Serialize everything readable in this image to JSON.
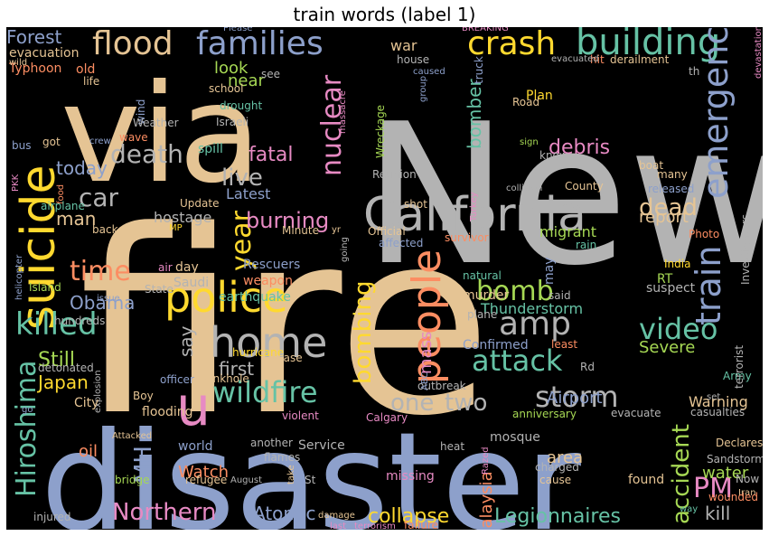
{
  "chart_data": {
    "type": "wordcloud",
    "title": "train words (label 1)",
    "background": "#000000",
    "palette": {
      "tan": "#e5c494",
      "gray": "#b3b3b3",
      "blue": "#8da0cb",
      "teal": "#66c2a5",
      "pink": "#e78ac3",
      "lime": "#a6d854",
      "yellow": "#ffd92f",
      "orange": "#fc8d62"
    },
    "words": [
      {
        "text": "New",
        "color": "gray",
        "rot": 0
      },
      {
        "text": "fire",
        "color": "tan",
        "rot": 0
      },
      {
        "text": "disaster",
        "color": "blue",
        "rot": 0
      },
      {
        "text": "via",
        "color": "tan",
        "rot": 0
      },
      {
        "text": "California",
        "color": "gray",
        "rot": 0
      },
      {
        "text": "suicide",
        "color": "yellow",
        "rot": -90
      },
      {
        "text": "police",
        "color": "yellow",
        "rot": 0
      },
      {
        "text": "people",
        "color": "orange",
        "rot": -90
      },
      {
        "text": "home",
        "color": "gray",
        "rot": 0
      },
      {
        "text": "building",
        "color": "teal",
        "rot": 0
      },
      {
        "text": "flood",
        "color": "tan",
        "rot": 0
      },
      {
        "text": "families",
        "color": "blue",
        "rot": 0
      },
      {
        "text": "crash",
        "color": "yellow",
        "rot": 0
      },
      {
        "text": "u",
        "color": "pink",
        "rot": 0
      },
      {
        "text": "killed",
        "color": "teal",
        "rot": 0
      },
      {
        "text": "amp",
        "color": "gray",
        "rot": 0
      },
      {
        "text": "bomb",
        "color": "lime",
        "rot": 0
      },
      {
        "text": "train",
        "color": "blue",
        "rot": -90
      },
      {
        "text": "emergency",
        "color": "blue",
        "rot": -90
      },
      {
        "text": "nuclear",
        "color": "pink",
        "rot": -90
      },
      {
        "text": "death",
        "color": "gray",
        "rot": 0
      },
      {
        "text": "car",
        "color": "gray",
        "rot": 0
      },
      {
        "text": "year",
        "color": "yellow",
        "rot": -90
      },
      {
        "text": "time",
        "color": "orange",
        "rot": 0
      },
      {
        "text": "Hiroshima",
        "color": "teal",
        "rot": -90
      },
      {
        "text": "wildfire",
        "color": "teal",
        "rot": 0
      },
      {
        "text": "attack",
        "color": "teal",
        "rot": 0
      },
      {
        "text": "video",
        "color": "teal",
        "rot": 0
      },
      {
        "text": "storm",
        "color": "gray",
        "rot": 0
      },
      {
        "text": "Northern",
        "color": "pink",
        "rot": 0
      },
      {
        "text": "bombing",
        "color": "yellow",
        "rot": -90
      },
      {
        "text": "accident",
        "color": "lime",
        "rot": -90
      },
      {
        "text": "dead",
        "color": "tan",
        "rot": 0
      },
      {
        "text": "live",
        "color": "gray",
        "rot": 0
      },
      {
        "text": "fatal",
        "color": "pink",
        "rot": 0
      },
      {
        "text": "burning",
        "color": "pink",
        "rot": 0
      },
      {
        "text": "debris",
        "color": "pink",
        "rot": 0
      },
      {
        "text": "two",
        "color": "gray",
        "rot": 0
      },
      {
        "text": "one",
        "color": "gray",
        "rot": 0
      },
      {
        "text": "PM",
        "color": "pink",
        "rot": 0
      },
      {
        "text": "MH",
        "color": "blue",
        "rot": -90
      },
      {
        "text": "collapse",
        "color": "yellow",
        "rot": 0
      },
      {
        "text": "Legionnaires",
        "color": "teal",
        "rot": 0
      },
      {
        "text": "Obama",
        "color": "blue",
        "rot": 0
      },
      {
        "text": "Still",
        "color": "lime",
        "rot": 0
      },
      {
        "text": "Japan",
        "color": "yellow",
        "rot": 0
      },
      {
        "text": "first",
        "color": "gray",
        "rot": 0
      },
      {
        "text": "say",
        "color": "gray",
        "rot": -90
      },
      {
        "text": "report",
        "color": "tan",
        "rot": 0
      },
      {
        "text": "Forest",
        "color": "blue",
        "rot": 0
      },
      {
        "text": "war",
        "color": "tan",
        "rot": 0
      },
      {
        "text": "look",
        "color": "lime",
        "rot": 0
      },
      {
        "text": "near",
        "color": "lime",
        "rot": 0
      },
      {
        "text": "today",
        "color": "blue",
        "rot": 0
      },
      {
        "text": "man",
        "color": "tan",
        "rot": 0
      },
      {
        "text": "bomber",
        "color": "teal",
        "rot": -90
      },
      {
        "text": "mass",
        "color": "pink",
        "rot": -90
      },
      {
        "text": "water",
        "color": "lime",
        "rot": 0
      },
      {
        "text": "area",
        "color": "tan",
        "rot": 0
      },
      {
        "text": "Watch",
        "color": "orange",
        "rot": 0
      },
      {
        "text": "Atomic",
        "color": "blue",
        "rot": 0
      },
      {
        "text": "kill",
        "color": "gray",
        "rot": 0
      },
      {
        "text": "Warning",
        "color": "tan",
        "rot": 0
      },
      {
        "text": "Airport",
        "color": "blue",
        "rot": 0
      },
      {
        "text": "Malaysia",
        "color": "orange",
        "rot": -90
      },
      {
        "text": "Severe",
        "color": "lime",
        "rot": 0
      },
      {
        "text": "Thunderstorm",
        "color": "teal",
        "rot": 0
      },
      {
        "text": "migrant",
        "color": "lime",
        "rot": 0
      },
      {
        "text": "Rescuers",
        "color": "blue",
        "rot": 0
      },
      {
        "text": "earthquake",
        "color": "teal",
        "rot": 0
      },
      {
        "text": "hostage",
        "color": "gray",
        "rot": 0
      },
      {
        "text": "Latest",
        "color": "blue",
        "rot": 0
      },
      {
        "text": "evacuation",
        "color": "tan",
        "rot": 0
      },
      {
        "text": "Typhoon",
        "color": "orange",
        "rot": 0
      },
      {
        "text": "wild",
        "color": "tan",
        "rot": 0
      },
      {
        "text": "old",
        "color": "orange",
        "rot": 0
      },
      {
        "text": "life",
        "color": "tan",
        "rot": 0
      },
      {
        "text": "wind",
        "color": "blue",
        "rot": -90
      },
      {
        "text": "Weather",
        "color": "gray",
        "rot": 0
      },
      {
        "text": "State",
        "color": "gray",
        "rot": 0
      },
      {
        "text": "drought",
        "color": "teal",
        "rot": 0
      },
      {
        "text": "school",
        "color": "tan",
        "rot": 0
      },
      {
        "text": "Israeli",
        "color": "gray",
        "rot": 0
      },
      {
        "text": "spill",
        "color": "teal",
        "rot": 0
      },
      {
        "text": "wave",
        "color": "orange",
        "rot": 0
      },
      {
        "text": "crew",
        "color": "blue",
        "rot": 0
      },
      {
        "text": "got",
        "color": "tan",
        "rot": 0
      },
      {
        "text": "bus",
        "color": "blue",
        "rot": 0
      },
      {
        "text": "PKK",
        "color": "pink",
        "rot": -90
      },
      {
        "text": "food",
        "color": "orange",
        "rot": -90
      },
      {
        "text": "airplane",
        "color": "teal",
        "rot": 0
      },
      {
        "text": "back",
        "color": "tan",
        "rot": 0
      },
      {
        "text": "helicopter",
        "color": "blue",
        "rot": -90
      },
      {
        "text": "Island",
        "color": "lime",
        "rot": 0
      },
      {
        "text": "issue",
        "color": "blue",
        "rot": 0
      },
      {
        "text": "air",
        "color": "pink",
        "rot": 0
      },
      {
        "text": "day",
        "color": "tan",
        "rot": 0
      },
      {
        "text": "Saudi",
        "color": "gray",
        "rot": 0
      },
      {
        "text": "weapon",
        "color": "orange",
        "rot": 0
      },
      {
        "text": "Update",
        "color": "tan",
        "rot": 0
      },
      {
        "text": "MP",
        "color": "yellow",
        "rot": 0
      },
      {
        "text": "Minute",
        "color": "tan",
        "rot": 0
      },
      {
        "text": "hundreds",
        "color": "gray",
        "rot": 0
      },
      {
        "text": "detonated",
        "color": "gray",
        "rot": 0
      },
      {
        "text": "explosion",
        "color": "gray",
        "rot": -90
      },
      {
        "text": "City",
        "color": "tan",
        "rot": 0
      },
      {
        "text": "go",
        "color": "blue",
        "rot": 0
      },
      {
        "text": "oil",
        "color": "orange",
        "rot": 0
      },
      {
        "text": "Boy",
        "color": "tan",
        "rot": 0
      },
      {
        "text": "hurricane",
        "color": "yellow",
        "rot": 0
      },
      {
        "text": "officer",
        "color": "blue",
        "rot": 0
      },
      {
        "text": "sinkhole",
        "color": "tan",
        "rot": 0
      },
      {
        "text": "case",
        "color": "tan",
        "rot": 0
      },
      {
        "text": "flooding",
        "color": "tan",
        "rot": 0
      },
      {
        "text": "Attacked",
        "color": "tan",
        "rot": 0
      },
      {
        "text": "world",
        "color": "blue",
        "rot": 0
      },
      {
        "text": "bridge",
        "color": "lime",
        "rot": 0
      },
      {
        "text": "refugee",
        "color": "tan",
        "rot": 0
      },
      {
        "text": "August",
        "color": "gray",
        "rot": 0
      },
      {
        "text": "another",
        "color": "gray",
        "rot": 0
      },
      {
        "text": "flames",
        "color": "gray",
        "rot": 0
      },
      {
        "text": "Service",
        "color": "gray",
        "rot": 0
      },
      {
        "text": "take",
        "color": "tan",
        "rot": -90
      },
      {
        "text": "St",
        "color": "gray",
        "rot": 0
      },
      {
        "text": "injured",
        "color": "gray",
        "rot": 0
      },
      {
        "text": "damage",
        "color": "tan",
        "rot": 0
      },
      {
        "text": "last",
        "color": "pink",
        "rot": 0
      },
      {
        "text": "terrorism",
        "color": "pink",
        "rot": 0
      },
      {
        "text": "failure",
        "color": "orange",
        "rot": 0
      },
      {
        "text": "missing",
        "color": "pink",
        "rot": 0
      },
      {
        "text": "heat",
        "color": "gray",
        "rot": 0
      },
      {
        "text": "charged",
        "color": "gray",
        "rot": 0
      },
      {
        "text": "cause",
        "color": "tan",
        "rot": 0
      },
      {
        "text": "Razed",
        "color": "pink",
        "rot": -90
      },
      {
        "text": "mosque",
        "color": "gray",
        "rot": 0
      },
      {
        "text": "found",
        "color": "tan",
        "rot": 0
      },
      {
        "text": "anniversary",
        "color": "lime",
        "rot": 0
      },
      {
        "text": "evacuate",
        "color": "gray",
        "rot": 0
      },
      {
        "text": "violent",
        "color": "pink",
        "rot": 0
      },
      {
        "text": "Calgary",
        "color": "pink",
        "rot": 0
      },
      {
        "text": "outbreak",
        "color": "gray",
        "rot": 0
      },
      {
        "text": "Confirmed",
        "color": "blue",
        "rot": 0
      },
      {
        "text": "ABC",
        "color": "blue",
        "rot": -90
      },
      {
        "text": "murder",
        "color": "tan",
        "rot": 0
      },
      {
        "text": "natural",
        "color": "teal",
        "rot": 0
      },
      {
        "text": "may",
        "color": "blue",
        "rot": -90
      },
      {
        "text": "RT",
        "color": "lime",
        "rot": 0
      },
      {
        "text": "India",
        "color": "yellow",
        "rot": 0
      },
      {
        "text": "suspect",
        "color": "gray",
        "rot": 0
      },
      {
        "text": "said",
        "color": "gray",
        "rot": 0
      },
      {
        "text": "plane",
        "color": "gray",
        "rot": 0
      },
      {
        "text": "least",
        "color": "orange",
        "rot": 0
      },
      {
        "text": "Rd",
        "color": "gray",
        "rot": 0
      },
      {
        "text": "Army",
        "color": "teal",
        "rot": 0
      },
      {
        "text": "terrorist",
        "color": "gray",
        "rot": -90
      },
      {
        "text": "Investigators",
        "color": "gray",
        "rot": -90
      },
      {
        "text": "set",
        "color": "gray",
        "rot": 0
      },
      {
        "text": "casualties",
        "color": "gray",
        "rot": 0
      },
      {
        "text": "Declares",
        "color": "tan",
        "rot": 0
      },
      {
        "text": "Sandstorm",
        "color": "gray",
        "rot": 0
      },
      {
        "text": "Now",
        "color": "gray",
        "rot": 0
      },
      {
        "text": "Iran",
        "color": "tan",
        "rot": 0
      },
      {
        "text": "wounded",
        "color": "orange",
        "rot": 0
      },
      {
        "text": "way",
        "color": "teal",
        "rot": 0
      },
      {
        "text": "Photo",
        "color": "orange",
        "rot": 0
      },
      {
        "text": "rain",
        "color": "teal",
        "rot": 0
      },
      {
        "text": "affected",
        "color": "blue",
        "rot": 0
      },
      {
        "text": "survivor",
        "color": "orange",
        "rot": 0
      },
      {
        "text": "Official",
        "color": "tan",
        "rot": 0
      },
      {
        "text": "going",
        "color": "gray",
        "rot": -90
      },
      {
        "text": "yr",
        "color": "tan",
        "rot": 0
      },
      {
        "text": "shot",
        "color": "tan",
        "rot": 0
      },
      {
        "text": "Reunion",
        "color": "gray",
        "rot": 0
      },
      {
        "text": "Wreckage",
        "color": "lime",
        "rot": -90
      },
      {
        "text": "collision",
        "color": "gray",
        "rot": 0
      },
      {
        "text": "County",
        "color": "tan",
        "rot": 0
      },
      {
        "text": "released",
        "color": "blue",
        "rot": 0
      },
      {
        "text": "boat",
        "color": "tan",
        "rot": 0
      },
      {
        "text": "many",
        "color": "tan",
        "rot": 0
      },
      {
        "text": "Turkey",
        "color": "pink",
        "rot": -90
      },
      {
        "text": "know",
        "color": "gray",
        "rot": 0
      },
      {
        "text": "sign",
        "color": "lime",
        "rot": 0
      },
      {
        "text": "Plan",
        "color": "yellow",
        "rot": 0
      },
      {
        "text": "Road",
        "color": "tan",
        "rot": 0
      },
      {
        "text": "massacre",
        "color": "pink",
        "rot": -90
      },
      {
        "text": "see",
        "color": "gray",
        "rot": 0
      },
      {
        "text": "house",
        "color": "gray",
        "rot": 0
      },
      {
        "text": "caused",
        "color": "blue",
        "rot": 0
      },
      {
        "text": "group",
        "color": "blue",
        "rot": -90
      },
      {
        "text": "truck",
        "color": "blue",
        "rot": -90
      },
      {
        "text": "hit",
        "color": "orange",
        "rot": 0
      },
      {
        "text": "derailment",
        "color": "tan",
        "rot": 0
      },
      {
        "text": "evacuated",
        "color": "gray",
        "rot": 0
      },
      {
        "text": "th",
        "color": "gray",
        "rot": 0
      },
      {
        "text": "devastation",
        "color": "pink",
        "rot": -90
      },
      {
        "text": "BREAKING",
        "color": "pink",
        "rot": 0
      },
      {
        "text": "Please",
        "color": "blue",
        "rot": 0
      }
    ]
  }
}
